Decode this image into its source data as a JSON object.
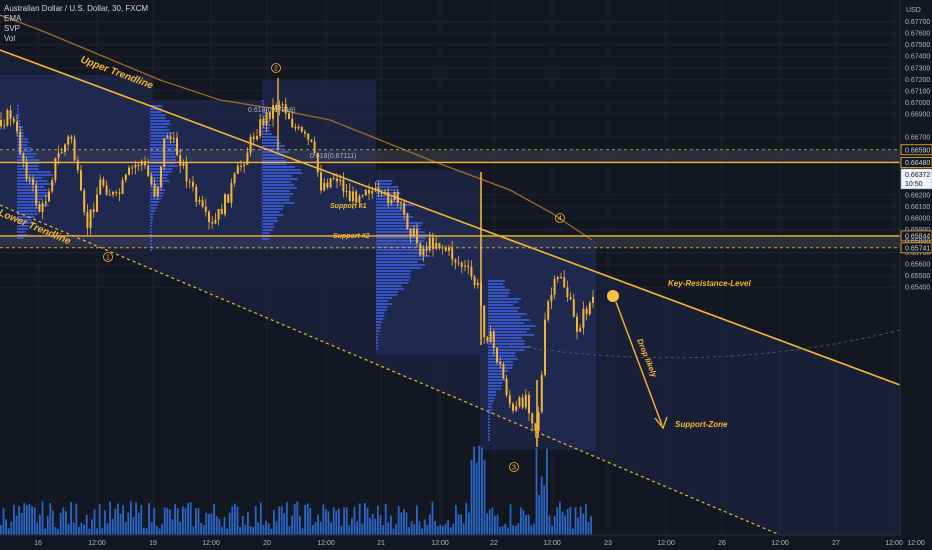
{
  "legend": {
    "symbol": "Australian Dollar / U.S. Dollar, 30, FXCM",
    "indicators": [
      "EMA",
      "SVP",
      "Vol"
    ]
  },
  "price_axis": {
    "currency": "USD",
    "ticks": [
      "0.67700",
      "0.67600",
      "0.67500",
      "0.67400",
      "0.67300",
      "0.67200",
      "0.67100",
      "0.67000",
      "0.66900",
      "0.66700",
      "0.66200",
      "0.66100",
      "0.66000",
      "0.65900",
      "0.65700",
      "0.65600",
      "0.65500",
      "0.65400"
    ],
    "tags": [
      {
        "label": "0.66590",
        "price": 0.6659,
        "style": "outline"
      },
      {
        "label": "0.66480",
        "price": 0.6648,
        "style": "outline"
      },
      {
        "label": "0.66372",
        "sub": "10:50",
        "price": 0.66372,
        "style": "current"
      },
      {
        "label": "0.65844",
        "price": 0.65844,
        "style": "outline"
      },
      {
        "label": "0.65800",
        "price": 0.658,
        "style": "plain"
      },
      {
        "label": "0.65741",
        "price": 0.65741,
        "style": "outline"
      }
    ]
  },
  "time_axis": {
    "ticks": [
      "16",
      "12:00",
      "19",
      "12:00",
      "20",
      "12:00",
      "21",
      "12:00",
      "22",
      "12:00",
      "23",
      "12:00",
      "26",
      "12:00",
      "27",
      "12:00"
    ],
    "corner": "12:00"
  },
  "annotations": {
    "upper_trendline": "Upper Trendline",
    "lower_trendline": "Lower Trendline",
    "key_resistance": "Key-Resistance-Level",
    "support_zone": "Support-Zone",
    "drop_likely": "Drop likely",
    "support1": "Support #1",
    "support2": "Support #2",
    "fib1": "0.618(0.67319)",
    "fib2": "0.618(0.67111)",
    "points": [
      "1",
      "2",
      "3",
      "4"
    ]
  },
  "colors": {
    "background": "#131722",
    "grid": "#1e222d",
    "accent": "#f5b82e",
    "candle": "#f2b53a",
    "ema": "#a3692b",
    "volume": "#2f6fd6",
    "profile": "#3b5bdb",
    "channel": "#20264a"
  }
}
